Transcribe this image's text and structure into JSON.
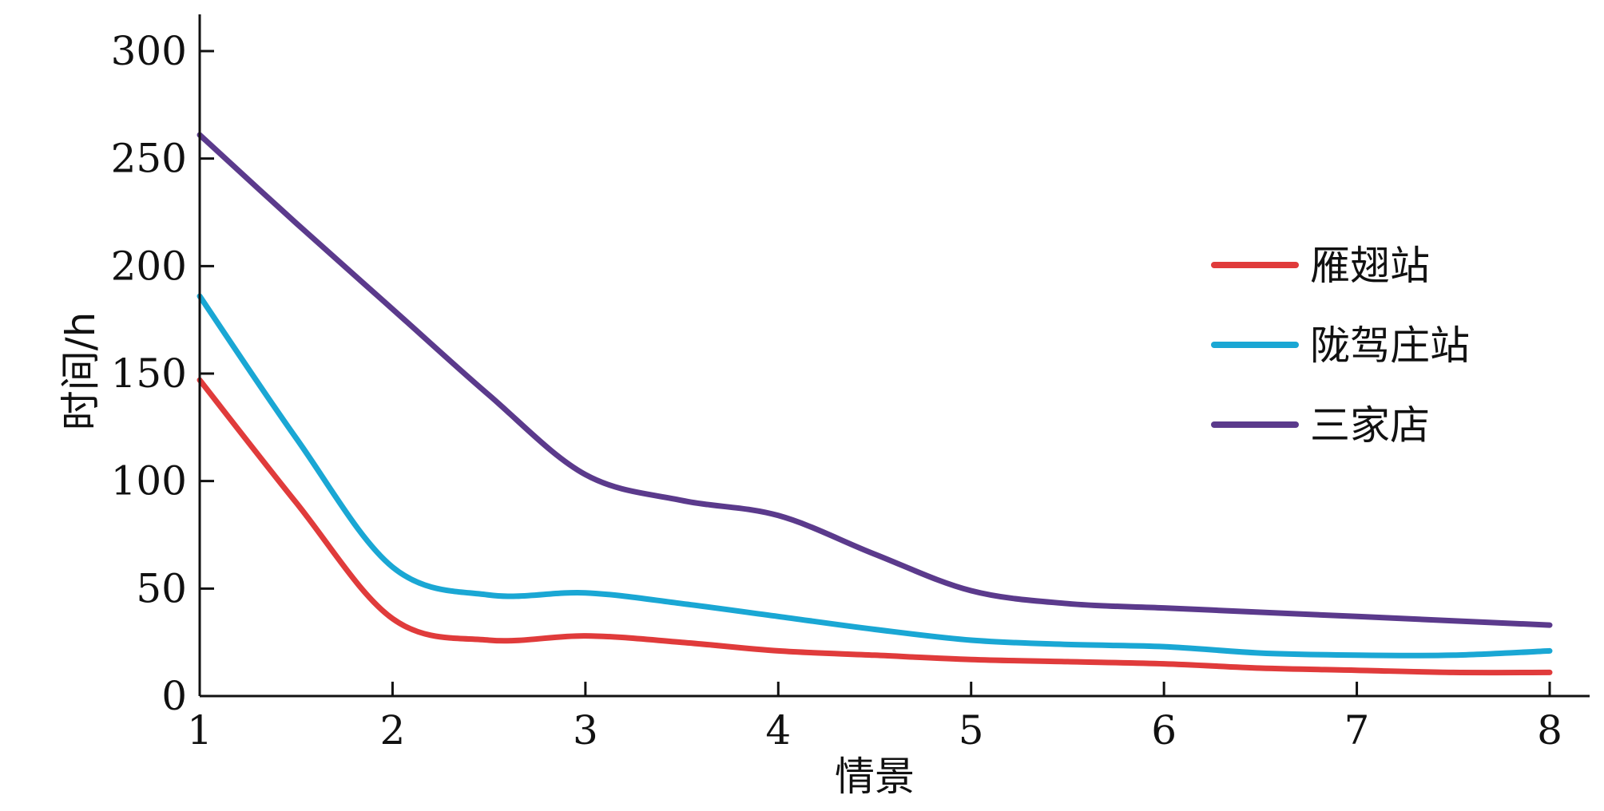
{
  "chart_data": {
    "type": "line",
    "title": "",
    "xlabel": "情景",
    "ylabel": "时间/h",
    "x": [
      1,
      2,
      3,
      4,
      5,
      6,
      7,
      8
    ],
    "xlim": [
      1,
      8
    ],
    "ylim": [
      0,
      300
    ],
    "x_ticks": [
      "1",
      "2",
      "3",
      "4",
      "5",
      "6",
      "7",
      "8"
    ],
    "y_ticks": [
      "0",
      "50",
      "100",
      "150",
      "200",
      "250",
      "300"
    ],
    "grid": false,
    "legend_position": "right",
    "series": [
      {
        "name": "雁翅站",
        "color": "#e03b3b",
        "points": [
          [
            1,
            147
          ],
          [
            1.5,
            90
          ],
          [
            2,
            36
          ],
          [
            2.5,
            26
          ],
          [
            3,
            28
          ],
          [
            3.5,
            25
          ],
          [
            4,
            21
          ],
          [
            4.5,
            19
          ],
          [
            5,
            17
          ],
          [
            5.5,
            16
          ],
          [
            6,
            15
          ],
          [
            6.5,
            13
          ],
          [
            7,
            12
          ],
          [
            7.5,
            11
          ],
          [
            8,
            11
          ]
        ]
      },
      {
        "name": "陇驾庄站",
        "color": "#1aa7d4",
        "points": [
          [
            1,
            186
          ],
          [
            1.5,
            120
          ],
          [
            2,
            60
          ],
          [
            2.5,
            47
          ],
          [
            3,
            48
          ],
          [
            3.5,
            43
          ],
          [
            4,
            37
          ],
          [
            4.5,
            31
          ],
          [
            5,
            26
          ],
          [
            5.5,
            24
          ],
          [
            6,
            23
          ],
          [
            6.5,
            20
          ],
          [
            7,
            19
          ],
          [
            7.5,
            19
          ],
          [
            8,
            21
          ]
        ]
      },
      {
        "name": "三家店",
        "color": "#5b3a8c",
        "points": [
          [
            1,
            261
          ],
          [
            1.5,
            220
          ],
          [
            2,
            180
          ],
          [
            2.5,
            140
          ],
          [
            3,
            103
          ],
          [
            3.5,
            91
          ],
          [
            4,
            84
          ],
          [
            4.5,
            66
          ],
          [
            5,
            49
          ],
          [
            5.5,
            43
          ],
          [
            6,
            41
          ],
          [
            6.5,
            39
          ],
          [
            7,
            37
          ],
          [
            7.5,
            35
          ],
          [
            8,
            33
          ]
        ]
      }
    ]
  }
}
